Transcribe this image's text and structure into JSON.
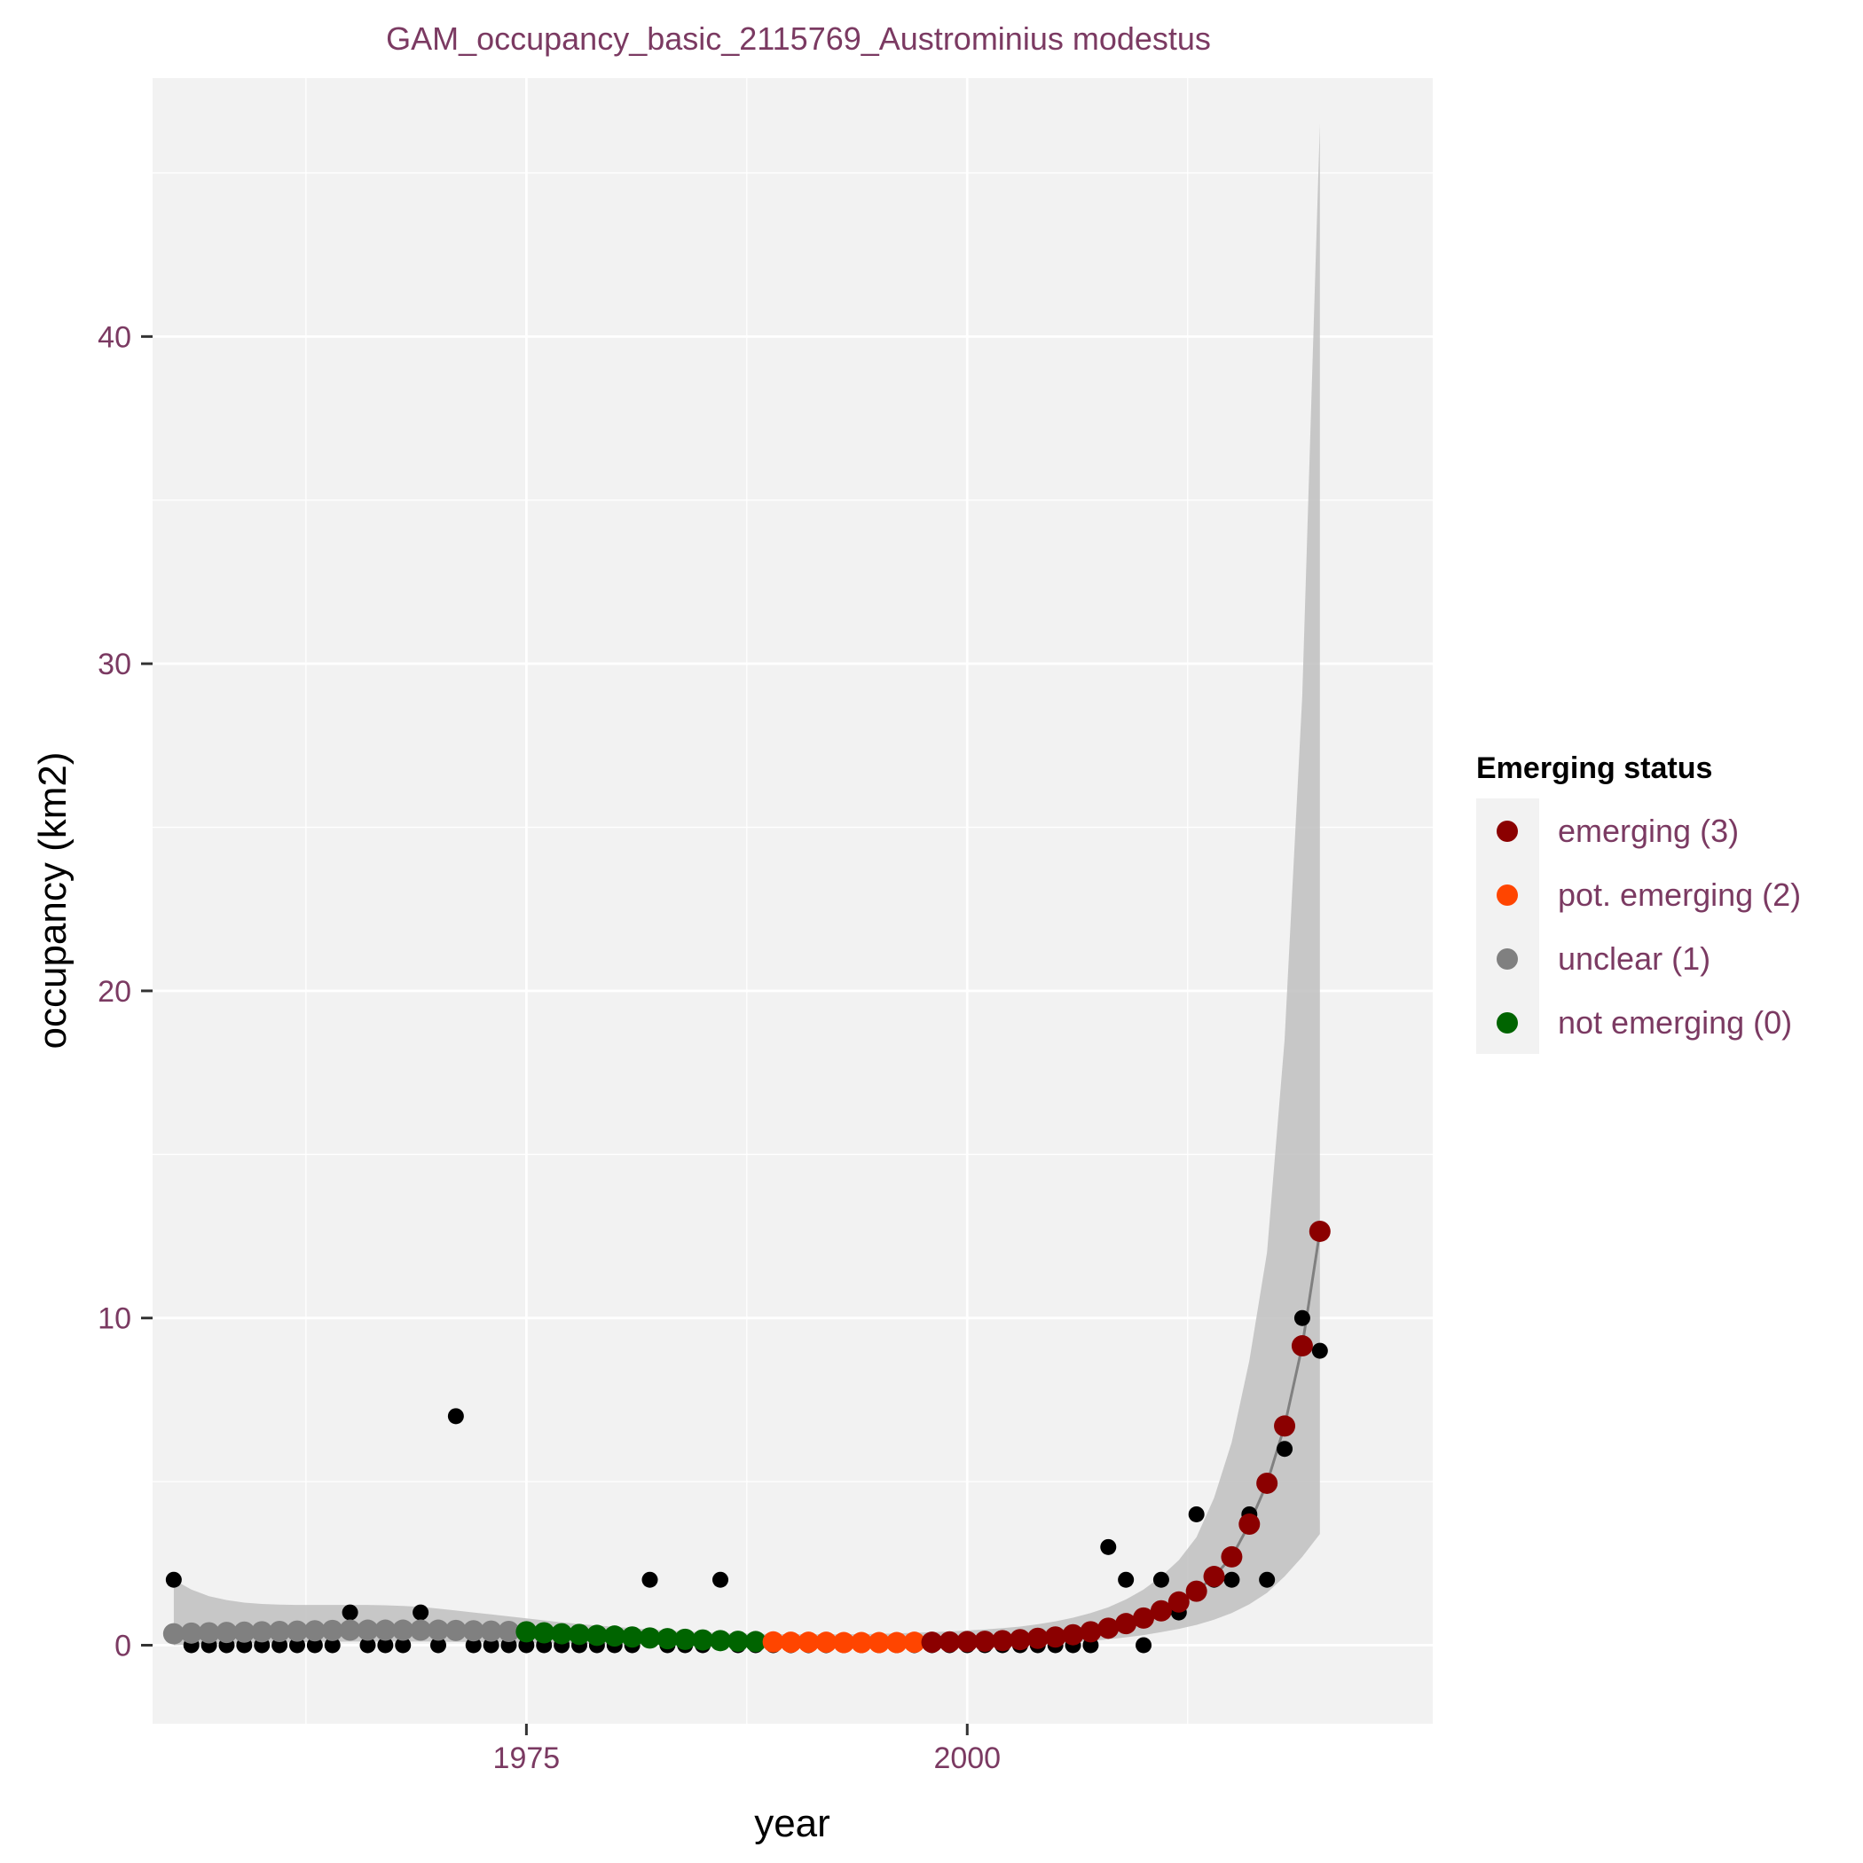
{
  "chart_data": {
    "type": "scatter",
    "title": "GAM_occupancy_basic_2115769_Austrominius modestus",
    "xlabel": "year",
    "ylabel": "occupancy (km2)",
    "xlim": [
      1953.8,
      2026.4
    ],
    "ylim": [
      -2.4,
      47.9
    ],
    "x_ticks": [
      1975,
      2000
    ],
    "x_tick_labels": [
      "1975",
      "2000"
    ],
    "x_minor_breaks": [
      1962.5,
      1987.5,
      2012.5
    ],
    "y_ticks": [
      0,
      10,
      20,
      30,
      40
    ],
    "y_tick_labels": [
      "0",
      "10",
      "20",
      "30",
      "40"
    ],
    "y_minor_breaks": [
      5,
      15,
      25,
      35,
      45
    ],
    "grid": true,
    "legend": {
      "title": "Emerging status",
      "position": "right",
      "entries": [
        {
          "label": "emerging (3)",
          "color": "#8B0000"
        },
        {
          "label": "pot. emerging (2)",
          "color": "#FF4500"
        },
        {
          "label": "unclear (1)",
          "color": "#808080"
        },
        {
          "label": "not emerging (0)",
          "color": "#006400"
        }
      ]
    },
    "colors": {
      "panel": "#F2F2F2",
      "grid": "#FFFFFF",
      "ribbon": "#BFBFBF",
      "line": "#808080",
      "observed": "#000000",
      "text": "#7B3A62"
    },
    "observed": {
      "x": [
        1955,
        1956,
        1957,
        1958,
        1959,
        1960,
        1961,
        1962,
        1963,
        1964,
        1965,
        1966,
        1967,
        1968,
        1969,
        1970,
        1971,
        1972,
        1973,
        1974,
        1975,
        1976,
        1977,
        1978,
        1979,
        1980,
        1981,
        1982,
        1983,
        1984,
        1985,
        1986,
        1987,
        1988,
        1989,
        1990,
        1991,
        1992,
        1993,
        1994,
        1995,
        1996,
        1997,
        1998,
        1999,
        2000,
        2001,
        2002,
        2003,
        2004,
        2005,
        2006,
        2007,
        2008,
        2009,
        2010,
        2011,
        2012,
        2013,
        2014,
        2015,
        2016,
        2017,
        2018,
        2019,
        2020
      ],
      "y": [
        2,
        0,
        0,
        0,
        0,
        0,
        0,
        0,
        0,
        0,
        1,
        0,
        0,
        0,
        1,
        0,
        7,
        0,
        0,
        0,
        0,
        0,
        0,
        0,
        0,
        0,
        0,
        2,
        0,
        0,
        0,
        2,
        0,
        0,
        0,
        0,
        0,
        0,
        0,
        0,
        0,
        0,
        0,
        0,
        0,
        0,
        0,
        0,
        0,
        0,
        0,
        0,
        0,
        3,
        2,
        0,
        2,
        1,
        4,
        2,
        2,
        4,
        2,
        6,
        10,
        9
      ]
    },
    "fitted": {
      "x": [
        1955,
        1956,
        1957,
        1958,
        1959,
        1960,
        1961,
        1962,
        1963,
        1964,
        1965,
        1966,
        1967,
        1968,
        1969,
        1970,
        1971,
        1972,
        1973,
        1974,
        1975,
        1976,
        1977,
        1978,
        1979,
        1980,
        1981,
        1982,
        1983,
        1984,
        1985,
        1986,
        1987,
        1988,
        1989,
        1990,
        1991,
        1992,
        1993,
        1994,
        1995,
        1996,
        1997,
        1998,
        1999,
        2000,
        2001,
        2002,
        2003,
        2004,
        2005,
        2006,
        2007,
        2008,
        2009,
        2010,
        2011,
        2012,
        2013,
        2014,
        2015,
        2016,
        2017,
        2018,
        2019,
        2020
      ],
      "y": [
        0.35,
        0.37,
        0.38,
        0.39,
        0.4,
        0.41,
        0.42,
        0.43,
        0.44,
        0.45,
        0.46,
        0.46,
        0.46,
        0.46,
        0.46,
        0.46,
        0.45,
        0.44,
        0.43,
        0.42,
        0.41,
        0.38,
        0.35,
        0.33,
        0.3,
        0.28,
        0.25,
        0.22,
        0.2,
        0.18,
        0.16,
        0.14,
        0.12,
        0.11,
        0.1,
        0.09,
        0.09,
        0.09,
        0.08,
        0.08,
        0.08,
        0.08,
        0.09,
        0.09,
        0.1,
        0.11,
        0.12,
        0.14,
        0.17,
        0.21,
        0.25,
        0.32,
        0.41,
        0.52,
        0.66,
        0.83,
        1.05,
        1.32,
        1.65,
        2.1,
        2.7,
        3.7,
        4.95,
        6.7,
        9.15,
        12.65
      ],
      "lower": [
        0.0,
        0.02,
        0.04,
        0.05,
        0.06,
        0.07,
        0.08,
        0.09,
        0.1,
        0.1,
        0.11,
        0.11,
        0.11,
        0.11,
        0.11,
        0.11,
        0.1,
        0.1,
        0.09,
        0.08,
        0.07,
        0.06,
        0.05,
        0.04,
        0.03,
        0.03,
        0.02,
        0.02,
        0.01,
        0.01,
        0.01,
        0.01,
        0.0,
        0.0,
        0.0,
        0.0,
        0.0,
        0.0,
        0.0,
        0.0,
        0.0,
        0.0,
        0.0,
        0.0,
        0.0,
        0.0,
        0.0,
        0.01,
        0.02,
        0.04,
        0.06,
        0.09,
        0.13,
        0.18,
        0.24,
        0.31,
        0.4,
        0.5,
        0.62,
        0.78,
        0.98,
        1.25,
        1.6,
        2.1,
        2.7,
        3.4
      ],
      "upper": [
        2.0,
        1.7,
        1.5,
        1.38,
        1.3,
        1.26,
        1.24,
        1.23,
        1.23,
        1.23,
        1.23,
        1.23,
        1.22,
        1.2,
        1.17,
        1.12,
        1.06,
        1.0,
        0.94,
        0.88,
        0.82,
        0.76,
        0.7,
        0.65,
        0.6,
        0.56,
        0.52,
        0.48,
        0.45,
        0.42,
        0.4,
        0.38,
        0.36,
        0.35,
        0.34,
        0.33,
        0.33,
        0.33,
        0.33,
        0.34,
        0.35,
        0.36,
        0.38,
        0.4,
        0.42,
        0.45,
        0.48,
        0.52,
        0.57,
        0.64,
        0.73,
        0.84,
        0.98,
        1.16,
        1.4,
        1.7,
        2.1,
        2.6,
        3.3,
        4.5,
        6.2,
        8.7,
        12.0,
        18.5,
        29.0,
        46.5
      ]
    },
    "status_segments": [
      {
        "status": "unclear (1)",
        "x_from": 1955,
        "x_to": 1974
      },
      {
        "status": "not emerging (0)",
        "x_from": 1975,
        "x_to": 1988
      },
      {
        "status": "pot. emerging (2)",
        "x_from": 1989,
        "x_to": 1997
      },
      {
        "status": "emerging (3)",
        "x_from": 1998,
        "x_to": 2020
      }
    ]
  }
}
